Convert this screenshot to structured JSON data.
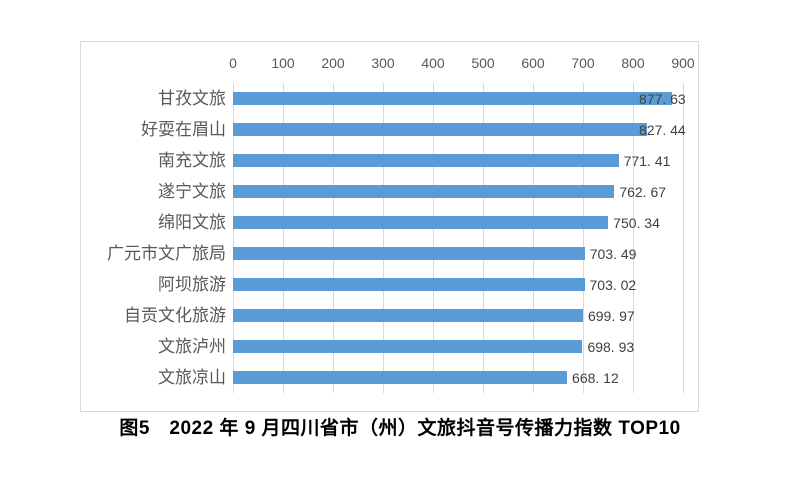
{
  "caption": {
    "text": "图5　2022 年 9 月四川省市（州）文旅抖音号传播力指数 TOP10"
  },
  "chart_data": {
    "type": "bar",
    "orientation": "horizontal",
    "title": "2022年9月四川省市（州）文旅抖音号传播力指数TOP10",
    "categories": [
      "甘孜文旅",
      "好耍在眉山",
      "南充文旅",
      "遂宁文旅",
      "绵阳文旅",
      "广元市文广旅局",
      "阿坝旅游",
      "自贡文化旅游",
      "文旅泸州",
      "文旅凉山"
    ],
    "values": [
      877.63,
      827.44,
      771.41,
      762.67,
      750.34,
      703.49,
      703.02,
      699.97,
      698.93,
      668.12
    ],
    "value_labels": [
      "877. 63",
      "827. 44",
      "771. 41",
      "762. 67",
      "750. 34",
      "703. 49",
      "703. 02",
      "699. 97",
      "698. 93",
      "668. 12"
    ],
    "x_ticks": [
      0,
      100,
      200,
      300,
      400,
      500,
      600,
      700,
      800,
      900
    ],
    "xlim": [
      0,
      900
    ],
    "grid": "vertical",
    "legend": "none",
    "axis_position": "top"
  },
  "colors": {
    "bar": "#5B9BD5",
    "grid": "#D9D9D9",
    "frame_border": "#D9D9D9",
    "tick_text": "#595959",
    "category_text": "#595959",
    "value_text": "#404040",
    "caption_text": "#000000",
    "background": "#FFFFFF"
  }
}
